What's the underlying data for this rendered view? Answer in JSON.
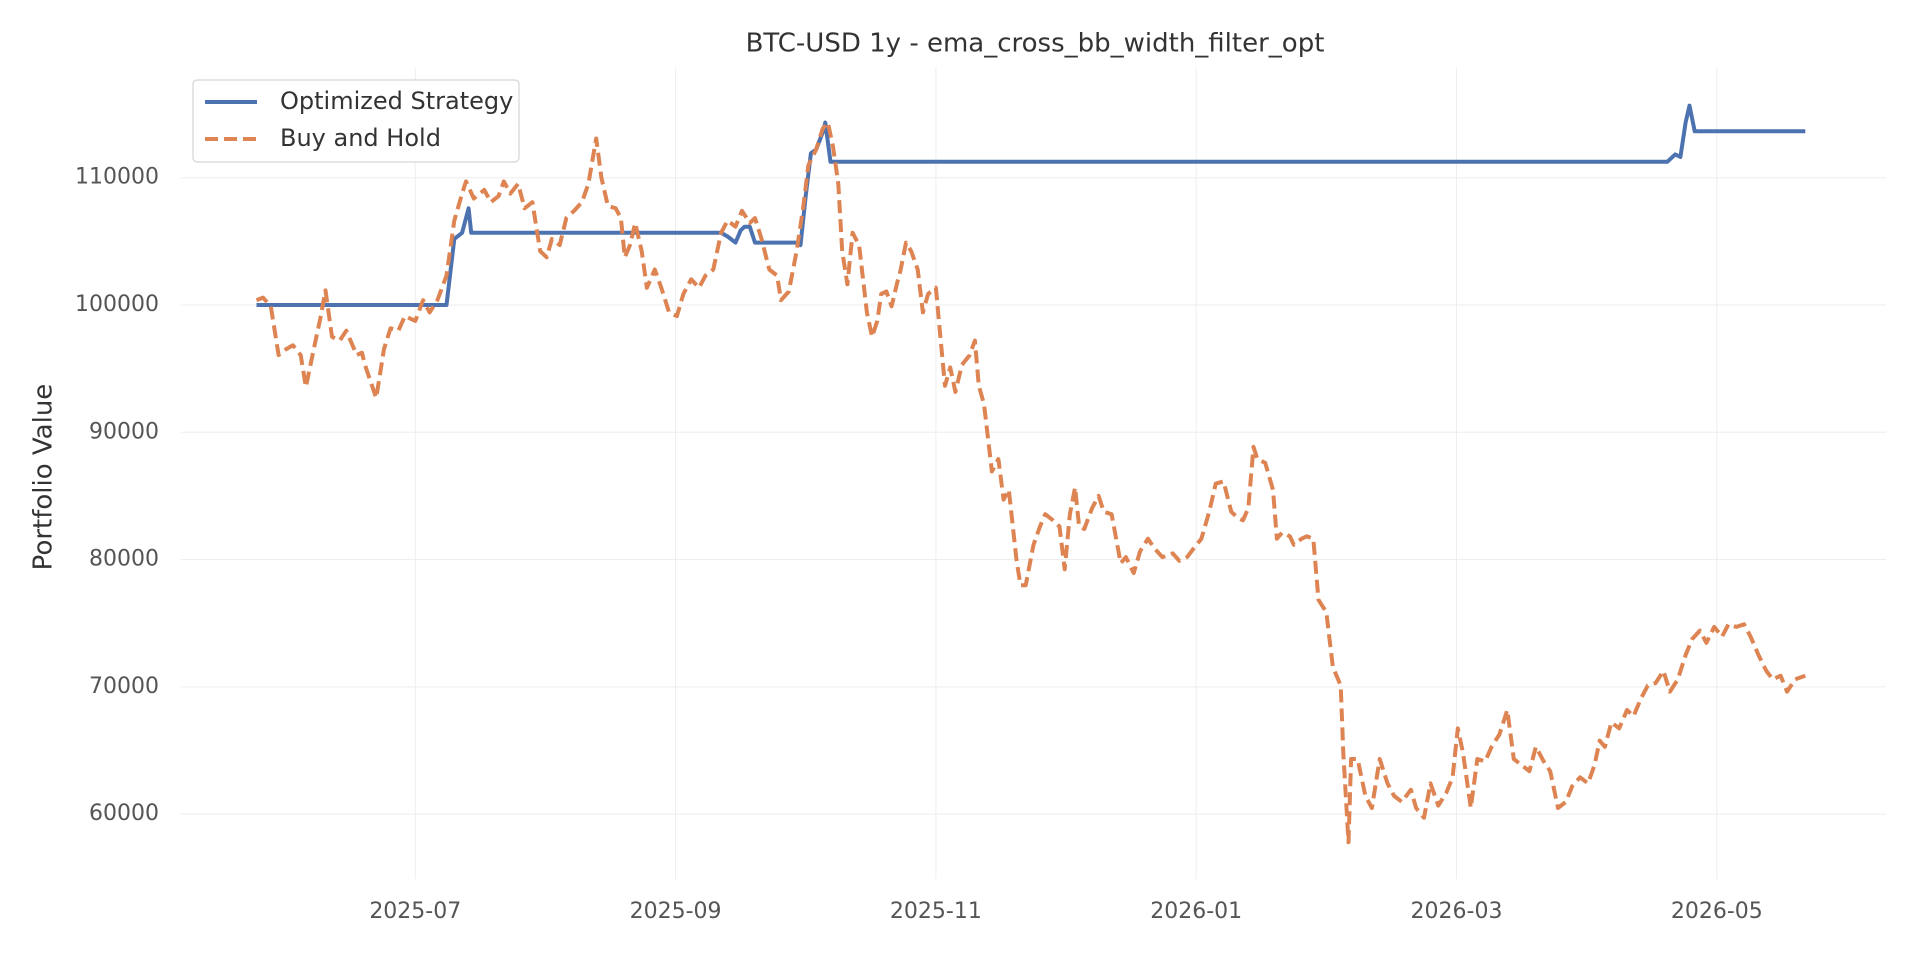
{
  "chart_data": {
    "type": "line",
    "title": "BTC-USD 1y - ema_cross_bb_width_filter_opt",
    "y_label": "Portfolio Value",
    "xlim": [
      5.2,
      18.3
    ],
    "xticks": [
      {
        "value": 7,
        "label": "2025-07"
      },
      {
        "value": 9,
        "label": "2025-09"
      },
      {
        "value": 11,
        "label": "2025-11"
      },
      {
        "value": 13,
        "label": "2026-01"
      },
      {
        "value": 15,
        "label": "2026-03"
      },
      {
        "value": 17,
        "label": "2026-05"
      }
    ],
    "ylim": [
      54900,
      118700
    ],
    "yticks": [
      60000,
      70000,
      80000,
      90000,
      100000,
      110000
    ],
    "grid": true,
    "legend": "upper-left",
    "series": [
      {
        "name": "Optimized Strategy",
        "color": "#4c72b0",
        "dash": false,
        "x": [
          5.78,
          7.24,
          7.3,
          7.36,
          7.41,
          7.43,
          9.35,
          9.4,
          9.46,
          9.5,
          9.53,
          9.57,
          9.61,
          9.93,
          9.96,
          10.0,
          10.04,
          10.08,
          10.13,
          10.15,
          10.19,
          16.62,
          16.68,
          16.72,
          16.76,
          16.79,
          16.83,
          17.68
        ],
        "values": [
          100000,
          100000,
          105190,
          105670,
          107600,
          105670,
          105670,
          105380,
          104900,
          105870,
          106150,
          106150,
          104900,
          104900,
          104710,
          108560,
          111920,
          112210,
          113560,
          114330,
          111250,
          111250,
          111830,
          111630,
          114330,
          115670,
          113650,
          113650
        ]
      },
      {
        "name": "Buy and Hold",
        "color": "#dd8452",
        "dash": true,
        "x": [
          5.78,
          5.83,
          5.89,
          5.95,
          6.01,
          6.06,
          6.12,
          6.16,
          6.21,
          6.27,
          6.31,
          6.36,
          6.42,
          6.47,
          6.51,
          6.55,
          6.59,
          6.62,
          6.7,
          6.76,
          6.81,
          6.87,
          6.92,
          7.0,
          7.06,
          7.11,
          7.17,
          7.24,
          7.3,
          7.36,
          7.39,
          7.45,
          7.53,
          7.58,
          7.64,
          7.68,
          7.73,
          7.79,
          7.84,
          7.9,
          7.96,
          8.01,
          8.05,
          8.11,
          8.16,
          8.22,
          8.28,
          8.33,
          8.39,
          8.43,
          8.48,
          8.54,
          8.58,
          8.61,
          8.65,
          8.69,
          8.74,
          8.78,
          8.84,
          8.89,
          8.95,
          9.01,
          9.06,
          9.12,
          9.18,
          9.23,
          9.29,
          9.35,
          9.4,
          9.46,
          9.51,
          9.57,
          9.61,
          9.66,
          9.72,
          9.78,
          9.81,
          9.87,
          9.93,
          9.98,
          10.02,
          10.08,
          10.13,
          10.17,
          10.21,
          10.25,
          10.28,
          10.32,
          10.36,
          10.41,
          10.47,
          10.51,
          10.55,
          10.58,
          10.62,
          10.66,
          10.7,
          10.73,
          10.77,
          10.81,
          10.86,
          10.9,
          10.94,
          11.0,
          11.03,
          11.07,
          11.11,
          11.15,
          11.2,
          11.26,
          11.3,
          11.33,
          11.37,
          11.43,
          11.48,
          11.52,
          11.56,
          11.62,
          11.65,
          11.69,
          11.75,
          11.8,
          11.84,
          11.9,
          11.95,
          11.99,
          12.03,
          12.07,
          12.1,
          12.14,
          12.2,
          12.25,
          12.29,
          12.35,
          12.42,
          12.46,
          12.52,
          12.57,
          12.63,
          12.68,
          12.74,
          12.82,
          12.87,
          12.93,
          12.98,
          13.04,
          13.1,
          13.15,
          13.21,
          13.27,
          13.32,
          13.36,
          13.4,
          13.44,
          13.47,
          13.53,
          13.59,
          13.62,
          13.66,
          13.72,
          13.75,
          13.81,
          13.85,
          13.9,
          13.94,
          14.0,
          14.05,
          14.11,
          14.13,
          14.17,
          14.19,
          14.24,
          14.3,
          14.35,
          14.41,
          14.47,
          14.52,
          14.58,
          14.65,
          14.69,
          14.75,
          14.8,
          14.86,
          14.92,
          14.97,
          15.01,
          15.05,
          15.11,
          15.16,
          15.22,
          15.27,
          15.33,
          15.39,
          15.44,
          15.5,
          15.56,
          15.61,
          15.67,
          15.72,
          15.78,
          15.84,
          15.89,
          15.95,
          16.01,
          16.06,
          16.1,
          16.14,
          16.19,
          16.25,
          16.31,
          16.36,
          16.42,
          16.47,
          16.53,
          16.59,
          16.64,
          16.7,
          16.76,
          16.81,
          16.87,
          16.92,
          16.98,
          17.04,
          17.09,
          17.15,
          17.21,
          17.26,
          17.32,
          17.38,
          17.43,
          17.49,
          17.54,
          17.6,
          17.68
        ],
        "values": [
          100380,
          100580,
          99900,
          96060,
          96540,
          96830,
          96060,
          93560,
          96060,
          98940,
          101150,
          97500,
          97210,
          97980,
          97020,
          96060,
          96250,
          95100,
          92690,
          96540,
          98170,
          97980,
          99130,
          98750,
          100380,
          99420,
          100380,
          102310,
          106630,
          108750,
          109710,
          108370,
          109040,
          108080,
          108560,
          109710,
          108750,
          109520,
          107600,
          108080,
          104230,
          103750,
          105190,
          104710,
          106830,
          107400,
          108080,
          109520,
          113080,
          110000,
          107790,
          107600,
          106830,
          103750,
          104710,
          106440,
          104230,
          101350,
          102790,
          101350,
          99420,
          99130,
          100870,
          102020,
          101350,
          102310,
          102790,
          105670,
          106630,
          106150,
          107400,
          106440,
          106830,
          105190,
          102790,
          102310,
          100380,
          101060,
          104230,
          107600,
          110960,
          112210,
          113850,
          114330,
          112400,
          109520,
          104230,
          101630,
          105670,
          104710,
          99420,
          97500,
          98750,
          100870,
          101060,
          99900,
          101630,
          102790,
          104900,
          104230,
          102790,
          99420,
          100870,
          101350,
          97980,
          93650,
          95100,
          93170,
          95290,
          96060,
          97210,
          93650,
          92210,
          86920,
          87890,
          84710,
          85480,
          79900,
          77980,
          77980,
          81160,
          82600,
          83560,
          83080,
          82600,
          79230,
          83560,
          85670,
          82600,
          82400,
          84040,
          85000,
          83750,
          83560,
          79710,
          80190,
          78940,
          80670,
          81640,
          80870,
          80190,
          80480,
          79900,
          80190,
          80870,
          81640,
          83750,
          85960,
          86150,
          83750,
          83270,
          83080,
          84040,
          88850,
          87890,
          87600,
          85480,
          81640,
          82120,
          81830,
          81160,
          81640,
          81830,
          81640,
          76830,
          75870,
          71540,
          70100,
          64810,
          57790,
          64330,
          64330,
          61440,
          60480,
          64330,
          62410,
          61440,
          60960,
          61920,
          60480,
          59710,
          62410,
          60670,
          61640,
          62890,
          66730,
          64810,
          60480,
          64330,
          64140,
          65290,
          66250,
          68180,
          64330,
          63850,
          63370,
          65290,
          64140,
          63370,
          60480,
          60960,
          62210,
          62890,
          62410,
          63850,
          65770,
          65290,
          67210,
          66730,
          68180,
          67690,
          69140,
          70100,
          70290,
          71250,
          69620,
          70580,
          72500,
          73750,
          74420,
          73460,
          74710,
          73940,
          74910,
          74710,
          74910,
          73940,
          72500,
          71250,
          70580,
          70870,
          69620,
          70580,
          70870
        ]
      }
    ]
  }
}
